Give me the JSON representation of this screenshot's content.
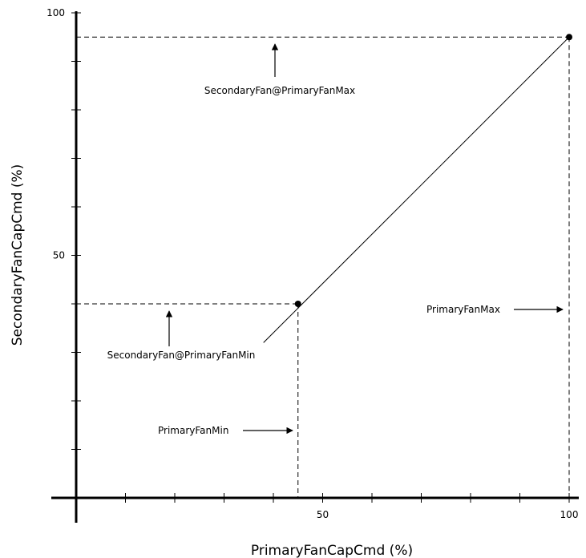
{
  "chart_data": {
    "type": "line",
    "title": "",
    "xlabel": "PrimaryFanCapCmd (%)",
    "ylabel": "SecondaryFanCapCmd (%)",
    "xlim": [
      0,
      100
    ],
    "ylim": [
      0,
      100
    ],
    "x_tick_labels": [
      "50",
      "100"
    ],
    "y_tick_labels": [
      "50",
      "100"
    ],
    "x_minor_step": 10,
    "y_minor_step": 10,
    "line": {
      "x": [
        38,
        100
      ],
      "y": [
        32,
        95
      ]
    },
    "points": [
      {
        "x": 45,
        "y": 40
      },
      {
        "x": 100,
        "y": 95
      }
    ],
    "annotations": [
      {
        "id": "sec-max",
        "text": "SecondaryFan@PrimaryFanMax",
        "value_x": 100,
        "value_y": 95
      },
      {
        "id": "sec-min",
        "text": "SecondaryFan@PrimaryFanMin",
        "value_x": 45,
        "value_y": 40
      },
      {
        "id": "prim-min",
        "text": "PrimaryFanMin",
        "value_x": 45
      },
      {
        "id": "prim-max",
        "text": "PrimaryFanMax",
        "value_x": 100
      }
    ],
    "colors": {
      "ink": "#000000",
      "background": "#ffffff"
    }
  }
}
